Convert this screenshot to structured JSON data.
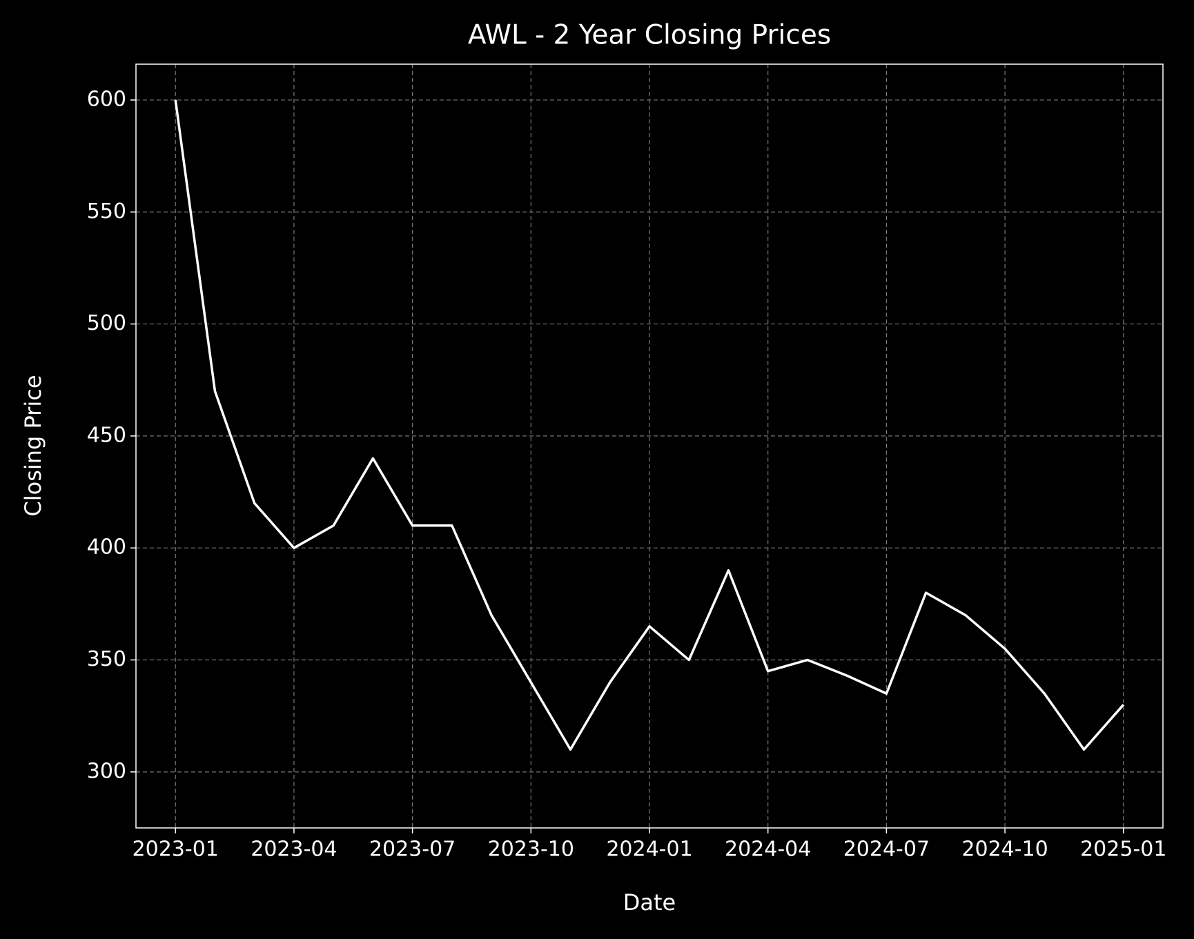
{
  "chart_data": {
    "type": "line",
    "title": "AWL - 2 Year Closing Prices",
    "x_label": "Date",
    "y_label": "Closing Price",
    "x": [
      "2023-01",
      "2023-02",
      "2023-03",
      "2023-04",
      "2023-05",
      "2023-06",
      "2023-07",
      "2023-08",
      "2023-09",
      "2023-10",
      "2023-11",
      "2023-12",
      "2024-01",
      "2024-02",
      "2024-03",
      "2024-04",
      "2024-05",
      "2024-06",
      "2024-07",
      "2024-08",
      "2024-09",
      "2024-10",
      "2024-11",
      "2024-12",
      "2025-01"
    ],
    "series": [
      {
        "name": "Closing Price",
        "color": "#ffffff",
        "values": [
          600,
          470,
          420,
          400,
          410,
          440,
          410,
          410,
          370,
          340,
          310,
          340,
          365,
          350,
          390,
          345,
          350,
          343,
          335,
          380,
          370,
          355,
          335,
          310,
          330
        ]
      }
    ],
    "xlim": [
      "2022-12",
      "2025-02"
    ],
    "ylim": [
      275,
      616
    ],
    "xticks": [
      "2023-01",
      "2023-04",
      "2023-07",
      "2023-10",
      "2024-01",
      "2024-04",
      "2024-07",
      "2024-10",
      "2025-01"
    ],
    "yticks": [
      300,
      350,
      400,
      450,
      500,
      550,
      600
    ],
    "grid": true
  }
}
